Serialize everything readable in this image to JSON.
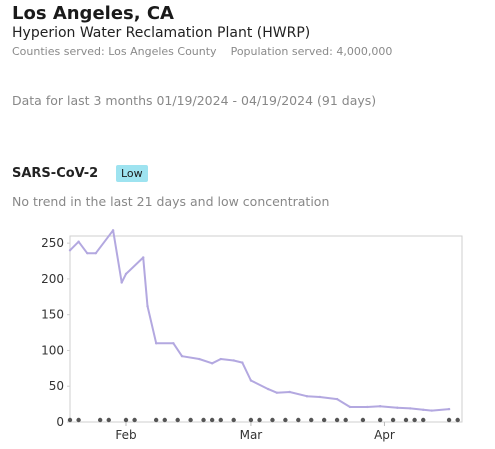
{
  "header": {
    "location": "Los Angeles, CA",
    "plant": "Hyperion Water Reclamation Plant (HWRP)",
    "counties_label": "Counties served: Los Angeles County",
    "population_label": "Population served: 4,000,000"
  },
  "range_text": "Data for last 3 months 01/19/2024 - 04/19/2024 (91 days)",
  "pathogen": {
    "name": "SARS-CoV-2",
    "level_badge": "Low",
    "trend_text": "No trend in the last 21 days and low concentration"
  },
  "colors": {
    "line": "#b3a8e0",
    "badge": "#9ee3f0",
    "dots": "#555555",
    "axis_text": "#333333"
  },
  "chart_data": {
    "type": "line",
    "x_start": "2024-01-19",
    "x_end": "2024-04-19",
    "xtick_labels": [
      "Feb",
      "Mar",
      "Apr"
    ],
    "xtick_dates": [
      "2024-02-01",
      "2024-03-01",
      "2024-04-01"
    ],
    "ylim": [
      0,
      260
    ],
    "yticks": [
      0,
      50,
      100,
      150,
      200,
      250
    ],
    "grid": false,
    "series": [
      {
        "x": [
          "2024-01-19",
          "2024-01-21",
          "2024-01-23",
          "2024-01-25",
          "2024-01-29",
          "2024-01-31",
          "2024-02-01",
          "2024-02-05",
          "2024-02-06",
          "2024-02-08",
          "2024-02-12",
          "2024-02-14",
          "2024-02-18",
          "2024-02-21",
          "2024-02-23",
          "2024-02-26",
          "2024-02-28",
          "2024-03-01",
          "2024-03-05",
          "2024-03-07",
          "2024-03-10",
          "2024-03-14",
          "2024-03-17",
          "2024-03-21",
          "2024-03-24",
          "2024-03-28",
          "2024-03-31",
          "2024-04-04",
          "2024-04-07",
          "2024-04-10",
          "2024-04-12",
          "2024-04-16"
        ],
        "values": [
          240,
          252,
          236,
          236,
          268,
          195,
          207,
          230,
          162,
          110,
          110,
          92,
          88,
          82,
          88,
          86,
          83,
          58,
          46,
          41,
          42,
          36,
          35,
          32,
          21,
          21,
          22,
          20,
          19,
          17,
          16,
          18
        ]
      }
    ],
    "sample_dates": [
      "2024-01-19",
      "2024-01-21",
      "2024-01-26",
      "2024-01-28",
      "2024-02-01",
      "2024-02-03",
      "2024-02-08",
      "2024-02-10",
      "2024-02-13",
      "2024-02-16",
      "2024-02-19",
      "2024-02-21",
      "2024-02-23",
      "2024-02-26",
      "2024-03-01",
      "2024-03-03",
      "2024-03-06",
      "2024-03-09",
      "2024-03-12",
      "2024-03-15",
      "2024-03-18",
      "2024-03-21",
      "2024-03-23",
      "2024-03-27",
      "2024-03-31",
      "2024-04-03",
      "2024-04-06",
      "2024-04-08",
      "2024-04-10",
      "2024-04-16",
      "2024-04-18"
    ]
  }
}
